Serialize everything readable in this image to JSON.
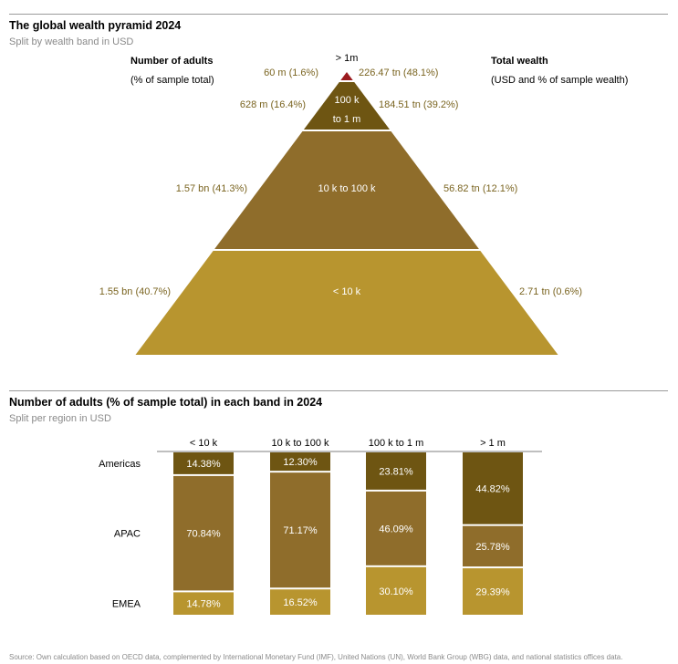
{
  "top_section": {
    "title": "The global wealth pyramid 2024",
    "subtitle": "Split by wealth band in USD",
    "left_header": "Number of adults",
    "left_subheader": "(% of sample total)",
    "right_header": "Total wealth",
    "right_subheader": "(USD and % of sample wealth)"
  },
  "bottom_section": {
    "title": "Number of adults (% of sample total) in each band in 2024",
    "subtitle": "Split per region in USD"
  },
  "source": "Source: Own calculation based on OECD data, complemented by International Monetary Fund (IMF), United Nations (UN), World Bank Group (WBG) data, and national statistics offices data.",
  "colors": {
    "band_top": "#9b1b1f",
    "band_100k_1m": "#6e5512",
    "band_10k_100k": "#8f6d2b",
    "band_lt10k": "#b8952f",
    "label_text": "#7a6420",
    "rule": "#9a9a9a"
  },
  "chart_data": [
    {
      "type": "pyramid",
      "bands": [
        {
          "band": "> 1m",
          "adults_label": "60 m (1.6%)",
          "adults_pct": 1.6,
          "wealth_label": "226.47 tn (48.1%)",
          "wealth_pct": 48.1
        },
        {
          "band": "100 k to 1 m",
          "adults_label": "628 m (16.4%)",
          "adults_pct": 16.4,
          "wealth_label": "184.51 tn (39.2%)",
          "wealth_pct": 39.2
        },
        {
          "band": "10 k to 100 k",
          "adults_label": "1.57 bn (41.3%)",
          "adults_pct": 41.3,
          "wealth_label": "56.82 tn (12.1%)",
          "wealth_pct": 12.1
        },
        {
          "band": "< 10 k",
          "adults_label": "1.55 bn (40.7%)",
          "adults_pct": 40.7,
          "wealth_label": "2.71 tn (0.6%)",
          "wealth_pct": 0.6
        }
      ]
    },
    {
      "type": "bar",
      "stacked": true,
      "categories": [
        "< 10 k",
        "10 k to 100 k",
        "100 k to 1 m",
        "> 1 m"
      ],
      "series": [
        {
          "name": "Americas",
          "values": [
            14.38,
            12.3,
            23.81,
            44.82
          ],
          "labels": [
            "14.38%",
            "12.30%",
            "23.81%",
            "44.82%"
          ]
        },
        {
          "name": "APAC",
          "values": [
            70.84,
            71.17,
            46.09,
            25.78
          ],
          "labels": [
            "70.84%",
            "71.17%",
            "46.09%",
            "25.78%"
          ]
        },
        {
          "name": "EMEA",
          "values": [
            14.78,
            16.52,
            30.1,
            29.39
          ],
          "labels": [
            "14.78%",
            "16.52%",
            "30.10%",
            "29.39%"
          ]
        }
      ],
      "ylim": [
        0,
        100
      ]
    }
  ]
}
